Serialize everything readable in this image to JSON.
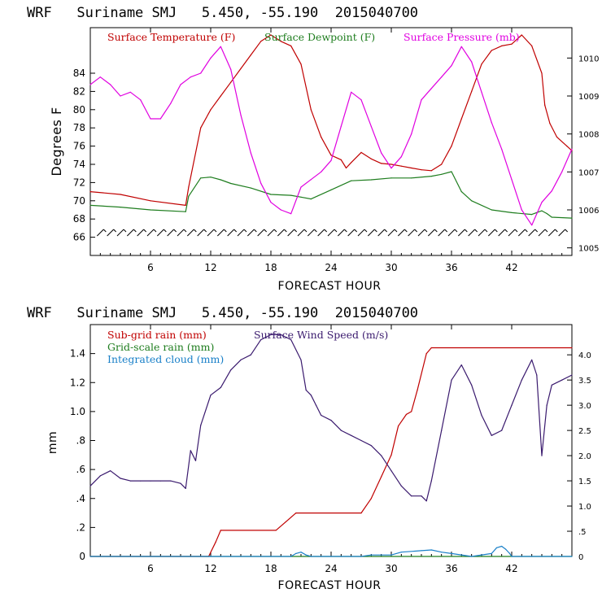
{
  "chart_data": [
    {
      "type": "line",
      "title": "WRF   Suriname SMJ   5.450, -55.190  2015040700",
      "xlabel": "FORECAST HOUR",
      "ylabel": "Degrees F",
      "xlim": [
        0,
        48
      ],
      "xticks": [
        6,
        12,
        18,
        24,
        30,
        36,
        42
      ],
      "ylim": [
        64,
        89
      ],
      "yticks": [
        66,
        68,
        70,
        72,
        74,
        76,
        78,
        80,
        82,
        84
      ],
      "y2lim": [
        1004.8,
        1010.8
      ],
      "y2ticks": [
        1005,
        1006,
        1007,
        1008,
        1009,
        1010
      ],
      "wind_barb_y": 66.5,
      "series": [
        {
          "name": "Surface Temperature (F)",
          "axis": "left",
          "color": "#c00000",
          "x": [
            0,
            3,
            6,
            9.5,
            9.8,
            11,
            12,
            13,
            14,
            15,
            16,
            17,
            18,
            19,
            20,
            21,
            22,
            23,
            24,
            25,
            25.5,
            26,
            27,
            28,
            29,
            30,
            31,
            32,
            33,
            34,
            35,
            36,
            37,
            38,
            39,
            40,
            41,
            42,
            43,
            44,
            45,
            45.3,
            45.8,
            46.5,
            47.5,
            48
          ],
          "values": [
            71,
            70.7,
            70,
            69.5,
            71.5,
            78,
            80,
            81.5,
            83,
            84.5,
            86,
            87.5,
            88.2,
            87.5,
            87,
            85,
            80,
            77,
            75,
            74.5,
            73.6,
            74.2,
            75.3,
            74.6,
            74.1,
            74,
            73.8,
            73.6,
            73.4,
            73.3,
            74,
            76,
            79,
            82,
            85,
            86.5,
            87,
            87.2,
            88.2,
            87,
            84,
            80.5,
            78.5,
            77,
            76,
            75.5
          ]
        },
        {
          "name": "Surface Dewpoint (F)",
          "axis": "left",
          "color": "#1e7d1e",
          "x": [
            0,
            3,
            6,
            9.5,
            9.8,
            11,
            12,
            13,
            14,
            16,
            18,
            20,
            21,
            22,
            24,
            26,
            28,
            30,
            32,
            34,
            35,
            36,
            37,
            38,
            40,
            42,
            44,
            45,
            45.5,
            46,
            48
          ],
          "values": [
            69.5,
            69.3,
            69,
            68.8,
            70.5,
            72.5,
            72.6,
            72.3,
            71.9,
            71.4,
            70.7,
            70.6,
            70.4,
            70.2,
            71.2,
            72.2,
            72.3,
            72.5,
            72.5,
            72.7,
            72.9,
            73.2,
            71,
            70,
            69,
            68.7,
            68.5,
            68.9,
            68.6,
            68.2,
            68.1
          ]
        },
        {
          "name": "Surface Pressure (mb)",
          "axis": "right",
          "color": "#e000e0",
          "x": [
            0,
            1,
            2,
            3,
            4,
            5,
            6,
            7,
            8,
            9,
            10,
            11,
            12,
            13,
            14,
            15,
            16,
            17,
            18,
            19,
            20,
            21,
            22,
            23,
            24,
            25,
            26,
            27,
            28,
            29,
            30,
            31,
            32,
            33,
            34,
            35,
            36,
            37,
            38,
            39,
            40,
            41,
            42,
            43,
            44,
            45,
            46,
            47,
            48
          ],
          "values": [
            1009.3,
            1009.5,
            1009.3,
            1009,
            1009.1,
            1008.9,
            1008.4,
            1008.4,
            1008.8,
            1009.3,
            1009.5,
            1009.6,
            1010,
            1010.3,
            1009.7,
            1008.5,
            1007.5,
            1006.7,
            1006.2,
            1006,
            1005.9,
            1006.6,
            1006.8,
            1007,
            1007.3,
            1008.2,
            1009.1,
            1008.9,
            1008.2,
            1007.5,
            1007.1,
            1007.4,
            1008,
            1008.9,
            1009.2,
            1009.5,
            1009.8,
            1010.3,
            1009.9,
            1009.1,
            1008.3,
            1007.6,
            1006.8,
            1006,
            1005.6,
            1006.2,
            1006.5,
            1007,
            1007.6
          ]
        }
      ]
    },
    {
      "type": "line",
      "title": "WRF   Suriname SMJ   5.450, -55.190  2015040700",
      "xlabel": "FORECAST HOUR",
      "ylabel": "mm",
      "xlim": [
        0,
        48
      ],
      "xticks": [
        6,
        12,
        18,
        24,
        30,
        36,
        42
      ],
      "ylim": [
        0,
        1.6
      ],
      "yticks": [
        0,
        0.2,
        0.4,
        0.6,
        0.8,
        1.0,
        1.2,
        1.4
      ],
      "ytick_labels": [
        "0",
        ".2",
        ".4",
        ".6",
        ".8",
        "1.0",
        "1.2",
        "1.4"
      ],
      "y2lim": [
        0,
        4.6
      ],
      "y2ticks": [
        0,
        0.5,
        1.0,
        1.5,
        2.0,
        2.5,
        3.0,
        3.5,
        4.0
      ],
      "y2tick_labels": [
        "0",
        ".5",
        "1.0",
        "1.5",
        "2.0",
        "2.5",
        "3.0",
        "3.5",
        "4.0"
      ],
      "series": [
        {
          "name": "Sub-grid rain (mm)",
          "axis": "left",
          "color": "#c00000",
          "x": [
            0,
            11.8,
            12.5,
            13,
            18.5,
            19.5,
            20.5,
            27,
            28,
            29,
            30,
            30.7,
            31.5,
            32,
            32.6,
            33.5,
            34,
            48
          ],
          "values": [
            0,
            0,
            0.1,
            0.18,
            0.18,
            0.24,
            0.3,
            0.3,
            0.4,
            0.55,
            0.7,
            0.9,
            0.98,
            1.0,
            1.15,
            1.4,
            1.44,
            1.44
          ]
        },
        {
          "name": "Grid-scale rain (mm)",
          "axis": "left",
          "color": "#1e7d1e",
          "x": [
            0,
            48
          ],
          "values": [
            0,
            0
          ]
        },
        {
          "name": "Integrated cloud (mm)",
          "axis": "left",
          "color": "#1a80c8",
          "x": [
            0,
            20,
            20.5,
            21,
            21.5,
            22,
            24,
            27,
            28,
            30,
            31,
            33,
            34,
            35,
            36,
            38,
            40,
            40.5,
            41,
            41.4,
            41.8,
            42,
            48
          ],
          "values": [
            0,
            0,
            0.02,
            0.03,
            0.01,
            0,
            0,
            0,
            0.01,
            0.01,
            0.03,
            0.04,
            0.045,
            0.03,
            0.02,
            0,
            0.02,
            0.06,
            0.07,
            0.05,
            0.02,
            0,
            0
          ]
        },
        {
          "name": "Surface Wind Speed (m/s)",
          "axis": "right",
          "color": "#3a1a6e",
          "x": [
            0,
            1,
            2,
            3,
            4,
            5,
            6,
            7,
            8,
            9,
            9.5,
            10,
            10.5,
            11,
            12,
            13,
            14,
            15,
            16,
            17,
            18,
            19,
            20,
            21,
            21.5,
            22,
            22.5,
            23,
            24,
            25,
            26,
            27,
            28,
            29,
            30,
            31,
            32,
            33,
            33.5,
            34,
            35,
            36,
            37,
            38,
            39,
            40,
            41,
            42,
            43,
            44,
            44.5,
            45,
            45.5,
            46,
            47,
            48
          ],
          "values": [
            1.4,
            1.6,
            1.7,
            1.55,
            1.5,
            1.5,
            1.5,
            1.5,
            1.5,
            1.45,
            1.35,
            2.1,
            1.9,
            2.6,
            3.2,
            3.35,
            3.7,
            3.9,
            4.0,
            4.3,
            4.4,
            4.4,
            4.3,
            3.9,
            3.3,
            3.2,
            3.0,
            2.8,
            2.7,
            2.5,
            2.4,
            2.3,
            2.2,
            2.0,
            1.7,
            1.4,
            1.2,
            1.2,
            1.1,
            1.5,
            2.5,
            3.5,
            3.8,
            3.4,
            2.8,
            2.4,
            2.5,
            3.0,
            3.5,
            3.9,
            3.6,
            2.0,
            3.0,
            3.4,
            3.5,
            3.6
          ]
        }
      ]
    }
  ]
}
